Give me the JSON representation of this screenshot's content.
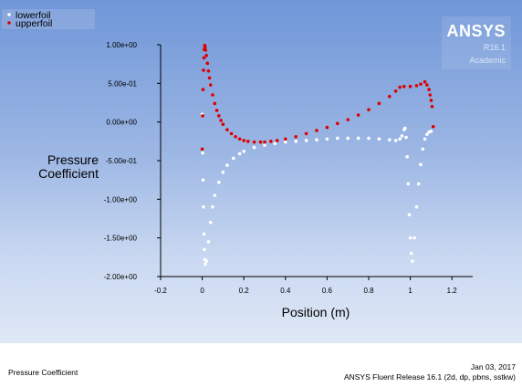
{
  "logo": {
    "name": "ANSYS",
    "release": "R16.1",
    "edition": "Academic"
  },
  "footer": {
    "left": "Pressure Coefficient",
    "date": "Jan 03, 2017",
    "release": "ANSYS Fluent Release 16.1 (2d, dp, pbns, sstkw)"
  },
  "colors": {
    "lowerfoil": "#ffffff",
    "upperfoil": "#dd0000"
  },
  "chart_data": {
    "type": "scatter",
    "xlabel": "Position (m)",
    "ylabel": "Pressure Coefficient",
    "xlim": [
      -0.2,
      1.3
    ],
    "ylim": [
      -2.0,
      1.0
    ],
    "x_ticks": [
      "-0.2",
      "0",
      "0.2",
      "0.4",
      "0.6",
      "0.8",
      "1",
      "1.2"
    ],
    "y_ticks": [
      "-2.00e+00",
      "-1.50e+00",
      "-1.00e+00",
      "-5.00e-01",
      "0.00e+00",
      "5.00e-01",
      "1.00e+00"
    ],
    "legend": [
      "lowerfoil",
      "upperfoil"
    ],
    "series": [
      {
        "name": "lowerfoil",
        "x": [
          0.0,
          0.002,
          0.004,
          0.006,
          0.008,
          0.01,
          0.012,
          0.015,
          0.02,
          0.03,
          0.04,
          0.05,
          0.06,
          0.08,
          0.1,
          0.12,
          0.15,
          0.18,
          0.2,
          0.25,
          0.3,
          0.35,
          0.4,
          0.45,
          0.5,
          0.55,
          0.6,
          0.65,
          0.7,
          0.75,
          0.8,
          0.85,
          0.9,
          0.93,
          0.95,
          0.96,
          0.97,
          0.975,
          0.98,
          0.985,
          0.99,
          0.995,
          1.0,
          1.005,
          1.01,
          1.02,
          1.03,
          1.04,
          1.05,
          1.06,
          1.07,
          1.08,
          1.09,
          1.1
        ],
        "y": [
          0.1,
          -0.4,
          -0.75,
          -1.1,
          -1.45,
          -1.65,
          -1.78,
          -1.84,
          -1.8,
          -1.55,
          -1.3,
          -1.1,
          -0.95,
          -0.78,
          -0.65,
          -0.56,
          -0.47,
          -0.41,
          -0.38,
          -0.33,
          -0.3,
          -0.28,
          -0.26,
          -0.25,
          -0.24,
          -0.23,
          -0.22,
          -0.21,
          -0.21,
          -0.21,
          -0.21,
          -0.22,
          -0.23,
          -0.24,
          -0.22,
          -0.18,
          -0.1,
          -0.08,
          -0.2,
          -0.45,
          -0.8,
          -1.2,
          -1.5,
          -1.7,
          -1.8,
          -1.5,
          -1.1,
          -0.8,
          -0.55,
          -0.35,
          -0.22,
          -0.16,
          -0.13,
          -0.12
        ]
      },
      {
        "name": "upperfoil",
        "x": [
          0.0,
          0.002,
          0.004,
          0.006,
          0.008,
          0.01,
          0.012,
          0.014,
          0.016,
          0.02,
          0.025,
          0.03,
          0.035,
          0.04,
          0.05,
          0.06,
          0.07,
          0.08,
          0.09,
          0.1,
          0.12,
          0.14,
          0.16,
          0.18,
          0.2,
          0.22,
          0.25,
          0.28,
          0.3,
          0.33,
          0.36,
          0.4,
          0.45,
          0.5,
          0.55,
          0.6,
          0.65,
          0.7,
          0.75,
          0.8,
          0.85,
          0.9,
          0.93,
          0.95,
          0.97,
          1.0,
          1.03,
          1.05,
          1.07,
          1.08,
          1.09,
          1.095,
          1.1,
          1.105,
          1.11
        ],
        "y": [
          -0.35,
          0.08,
          0.42,
          0.67,
          0.83,
          0.94,
          0.99,
          0.97,
          0.93,
          0.86,
          0.76,
          0.66,
          0.57,
          0.48,
          0.35,
          0.24,
          0.15,
          0.08,
          0.02,
          -0.03,
          -0.1,
          -0.15,
          -0.19,
          -0.22,
          -0.24,
          -0.25,
          -0.26,
          -0.26,
          -0.26,
          -0.25,
          -0.24,
          -0.22,
          -0.19,
          -0.15,
          -0.11,
          -0.07,
          -0.02,
          0.03,
          0.09,
          0.16,
          0.24,
          0.33,
          0.4,
          0.45,
          0.46,
          0.46,
          0.47,
          0.49,
          0.52,
          0.48,
          0.42,
          0.35,
          0.28,
          0.2,
          -0.06
        ]
      }
    ]
  }
}
